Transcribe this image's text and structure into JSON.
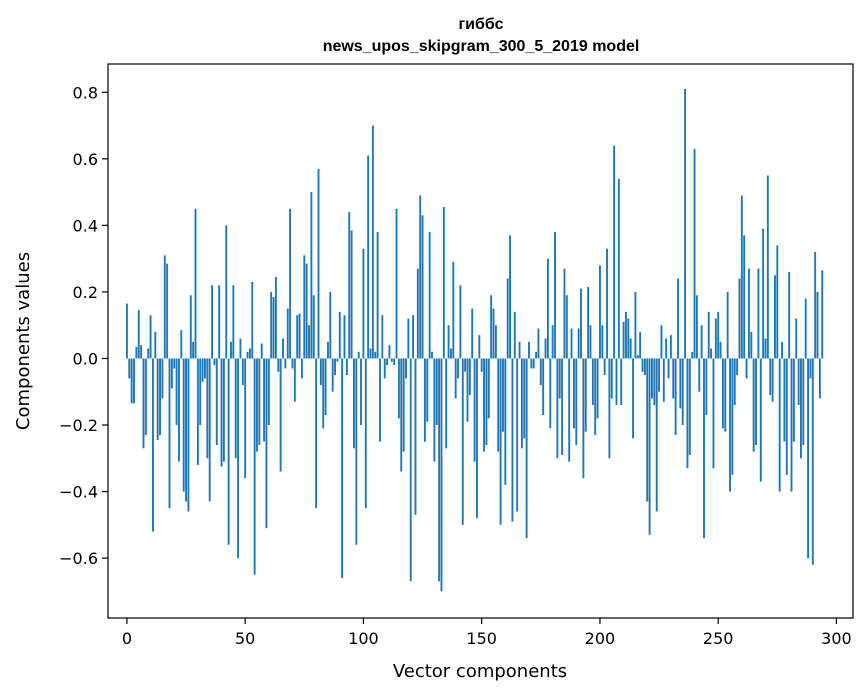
{
  "chart_data": {
    "type": "bar",
    "title": "гиббс",
    "subtitle": "news_upos_skipgram_300_5_2019 model",
    "xlabel": "Vector components",
    "ylabel": "Components values",
    "xlim": [
      -8,
      307
    ],
    "ylim": [
      -0.78,
      0.885
    ],
    "xticks": [
      0,
      50,
      100,
      150,
      200,
      250,
      300
    ],
    "xtick_labels": [
      "0",
      "50",
      "100",
      "150",
      "200",
      "250",
      "300"
    ],
    "yticks": [
      -0.6,
      -0.4,
      -0.2,
      0.0,
      0.2,
      0.4,
      0.6,
      0.8
    ],
    "ytick_labels": [
      "−0.6",
      "−0.4",
      "−0.2",
      "0.0",
      "0.2",
      "0.4",
      "0.6",
      "0.8"
    ],
    "grid": false,
    "color": "#1f77b4",
    "values": [
      0.165,
      -0.06,
      -0.135,
      -0.135,
      0.035,
      0.145,
      0.04,
      -0.27,
      -0.23,
      0.03,
      0.13,
      -0.52,
      0.08,
      -0.245,
      -0.23,
      -0.12,
      0.31,
      0.285,
      -0.45,
      -0.09,
      -0.03,
      -0.2,
      -0.31,
      0.085,
      -0.4,
      -0.43,
      -0.46,
      0.19,
      0.05,
      0.45,
      -0.32,
      -0.2,
      -0.07,
      -0.06,
      -0.3,
      -0.43,
      0.22,
      -0.02,
      -0.26,
      0.22,
      -0.325,
      -0.31,
      0.4,
      -0.56,
      0.05,
      0.22,
      -0.3,
      -0.6,
      0.06,
      -0.08,
      -0.36,
      0.02,
      0.03,
      0.23,
      -0.65,
      -0.28,
      -0.26,
      0.045,
      -0.25,
      -0.51,
      -0.2,
      0.2,
      0.185,
      0.245,
      -0.04,
      -0.34,
      0.06,
      -0.03,
      0.15,
      0.45,
      -0.03,
      -0.13,
      0.13,
      0.135,
      -0.06,
      0.31,
      0.285,
      0.1,
      0.5,
      0.19,
      -0.45,
      0.57,
      -0.08,
      -0.21,
      -0.17,
      0.05,
      0.2,
      -0.1,
      -0.05,
      -0.01,
      0.14,
      -0.66,
      0.13,
      -0.05,
      0.44,
      0.385,
      -0.27,
      -0.56,
      0.02,
      -0.2,
      0.33,
      -0.45,
      0.61,
      0.03,
      0.7,
      0.02,
      0.38,
      -0.25,
      0.13,
      -0.06,
      -0.02,
      0.04,
      -0.01,
      -0.02,
      0.45,
      -0.18,
      -0.34,
      -0.28,
      -0.06,
      0.12,
      -0.67,
      0.13,
      -0.47,
      0.27,
      0.49,
      0.43,
      -0.25,
      -0.19,
      0.38,
      0.02,
      -0.31,
      -0.2,
      -0.67,
      -0.7,
      0.455,
      -0.27,
      0.1,
      0.03,
      0.29,
      -0.12,
      -0.06,
      0.22,
      -0.5,
      -0.04,
      -0.19,
      -0.11,
      0.15,
      -0.31,
      -0.48,
      0.07,
      -0.04,
      -0.28,
      -0.26,
      -0.18,
      0.19,
      0.15,
      0.1,
      -0.28,
      -0.5,
      -0.22,
      -0.38,
      0.24,
      0.37,
      -0.49,
      0.14,
      -0.46,
      0.05,
      -0.27,
      -0.24,
      -0.54,
      0.05,
      -0.03,
      -0.03,
      0.02,
      0.09,
      -0.08,
      -0.17,
      0.06,
      0.3,
      -0.21,
      0.1,
      0.38,
      -0.3,
      -0.12,
      -0.29,
      0.27,
      0.19,
      -0.31,
      0.09,
      -0.21,
      -0.26,
      0.09,
      0.21,
      -0.36,
      -0.22,
      0.215,
      0.1,
      -0.14,
      -0.23,
      -0.18,
      0.28,
      0.1,
      -0.05,
      0.33,
      -0.3,
      -0.12,
      0.64,
      -0.14,
      0.54,
      -0.14,
      0.11,
      0.14,
      0.12,
      0.06,
      -0.24,
      0.2,
      0.01,
      0.08,
      -0.04,
      -0.05,
      -0.43,
      -0.53,
      -0.12,
      -0.14,
      -0.46,
      -0.1,
      0.1,
      -0.13,
      0.06,
      -0.06,
      0.07,
      -0.12,
      -0.23,
      0.24,
      -0.15,
      -0.2,
      0.81,
      -0.33,
      -0.29,
      0.02,
      0.63,
      0.19,
      -0.1,
      0.1,
      -0.54,
      -0.17,
      0.14,
      0.03,
      -0.33,
      0.12,
      0.14,
      0.05,
      -0.21,
      -0.22,
      0.2,
      -0.4,
      -0.35,
      -0.14,
      -0.05,
      0.24,
      0.49,
      0.37,
      -0.06,
      0.27,
      0.08,
      -0.28,
      -0.26,
      0.27,
      -0.37,
      0.39,
      0.06,
      0.55,
      -0.11,
      -0.13,
      0.25,
      0.34,
      -0.4,
      0.05,
      -0.25,
      -0.35,
      0.26,
      -0.4,
      -0.25,
      0.12,
      -0.14,
      -0.3,
      -0.26,
      0.18,
      -0.6,
      -0.06,
      -0.62,
      0.32,
      0.2,
      -0.12,
      0.265
    ]
  }
}
